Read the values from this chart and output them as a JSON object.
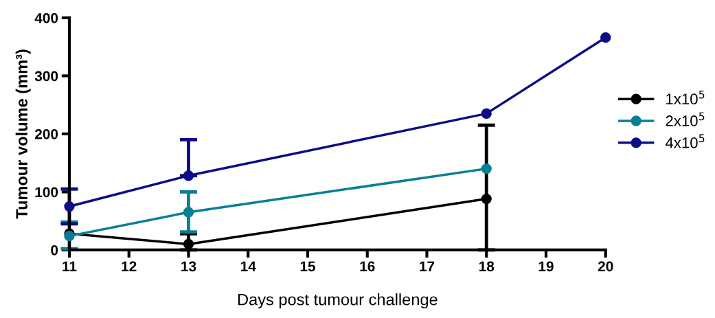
{
  "chart_data": {
    "type": "line",
    "xlabel": "Days post tumour challenge",
    "ylabel": "Tumour volume (mm³)",
    "xlim": [
      11,
      20
    ],
    "xticks": [
      11,
      12,
      13,
      14,
      15,
      16,
      17,
      18,
      19,
      20
    ],
    "ylim": [
      0,
      400
    ],
    "yticks": [
      0,
      100,
      200,
      300,
      400
    ],
    "grid": false,
    "legend": "right",
    "marker": "circle",
    "line_style": "solid",
    "series": [
      {
        "name": "1x10$^{5}$",
        "color": "#000000",
        "x": [
          11,
          13,
          18
        ],
        "values": [
          28,
          10,
          88
        ],
        "errors": [
          null,
          [
            0,
            28
          ],
          [
            0,
            215
          ]
        ]
      },
      {
        "name": "2x10$^{5}$",
        "color": "#0a7f94",
        "x": [
          11,
          13,
          18
        ],
        "values": [
          24,
          65,
          140
        ],
        "errors": [
          [
            2,
            48
          ],
          [
            31,
            100
          ],
          null
        ]
      },
      {
        "name": "4x10$^{5}$",
        "color": "#0c0c86",
        "x": [
          11,
          13,
          18,
          20
        ],
        "values": [
          75,
          128,
          235,
          366
        ],
        "errors": [
          [
            45,
            105
          ],
          [
            128,
            190
          ],
          null,
          null
        ]
      }
    ]
  }
}
